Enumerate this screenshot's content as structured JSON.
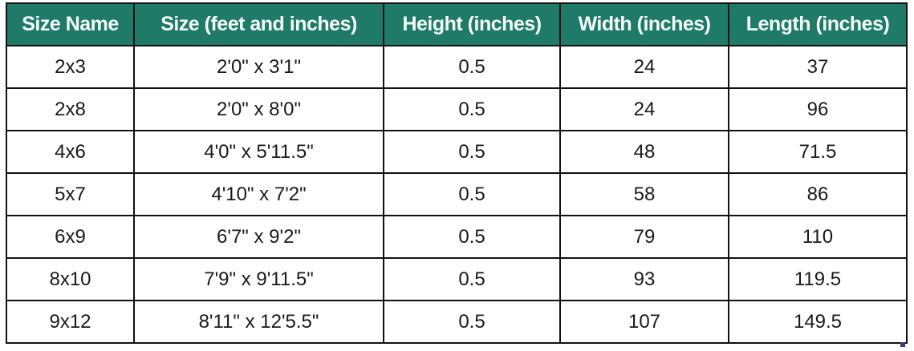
{
  "table": {
    "headers": [
      "Size Name",
      "Size (feet and inches)",
      "Height (inches)",
      "Width (inches)",
      "Length (inches)"
    ],
    "rows": [
      [
        "2x3",
        "2'0\" x 3'1\"",
        "0.5",
        "24",
        "37"
      ],
      [
        "2x8",
        "2'0\" x 8'0\"",
        "0.5",
        "24",
        "96"
      ],
      [
        "4x6",
        "4'0\" x 5'11.5\"",
        "0.5",
        "48",
        "71.5"
      ],
      [
        "5x7",
        "4'10\" x 7'2\"",
        "0.5",
        "58",
        "86"
      ],
      [
        "6x9",
        "6'7\" x 9'2\"",
        "0.5",
        "79",
        "110"
      ],
      [
        "8x10",
        "7'9\" x 9'11.5\"",
        "0.5",
        "93",
        "119.5"
      ],
      [
        "9x12",
        "8'11\" x 12'5.5\"",
        "0.5",
        "107",
        "149.5"
      ]
    ],
    "header_color": "#1f7a68"
  }
}
